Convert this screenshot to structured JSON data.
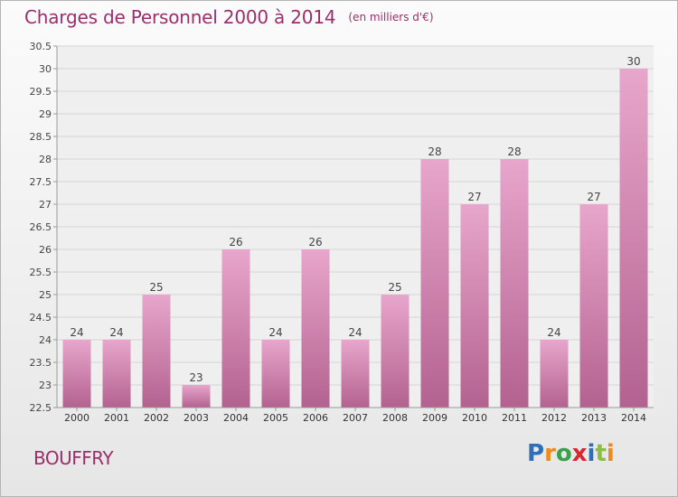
{
  "header": {
    "title": "Charges de Personnel 2000 à 2014",
    "unit": "(en milliers d'€)"
  },
  "footer": {
    "commune": "BOUFFRY",
    "brand": [
      "P",
      "r",
      "o",
      "x",
      "i",
      "t",
      "i"
    ]
  },
  "colors": {
    "accent": "#9a2f6c",
    "bar_top": "#e8a6cc",
    "bar_bottom": "#b3628f"
  },
  "chart_data": {
    "type": "bar",
    "categories": [
      "2000",
      "2001",
      "2002",
      "2003",
      "2004",
      "2005",
      "2006",
      "2007",
      "2008",
      "2009",
      "2010",
      "2011",
      "2012",
      "2013",
      "2014"
    ],
    "values": [
      24,
      24,
      25,
      23,
      26,
      24,
      26,
      24,
      25,
      28,
      27,
      28,
      24,
      27,
      30
    ],
    "data_labels": [
      "24",
      "24",
      "25",
      "23",
      "26",
      "24",
      "26",
      "24",
      "25",
      "28",
      "27",
      "28",
      "24",
      "27",
      "30"
    ],
    "title": "Charges de Personnel 2000 à 2014",
    "xlabel": "",
    "ylabel": "",
    "ylim": [
      22.5,
      30.5
    ],
    "yticks": [
      22.5,
      23,
      23.5,
      24,
      24.5,
      25,
      25.5,
      26,
      26.5,
      27,
      27.5,
      28,
      28.5,
      29,
      29.5,
      30,
      30.5
    ],
    "ytick_labels": [
      "22.5",
      "23",
      "23.5",
      "24",
      "24.5",
      "25",
      "25.5",
      "26",
      "26.5",
      "27",
      "27.5",
      "28",
      "28.5",
      "29",
      "29.5",
      "30",
      "30.5"
    ],
    "grid": true,
    "legend": "none"
  }
}
